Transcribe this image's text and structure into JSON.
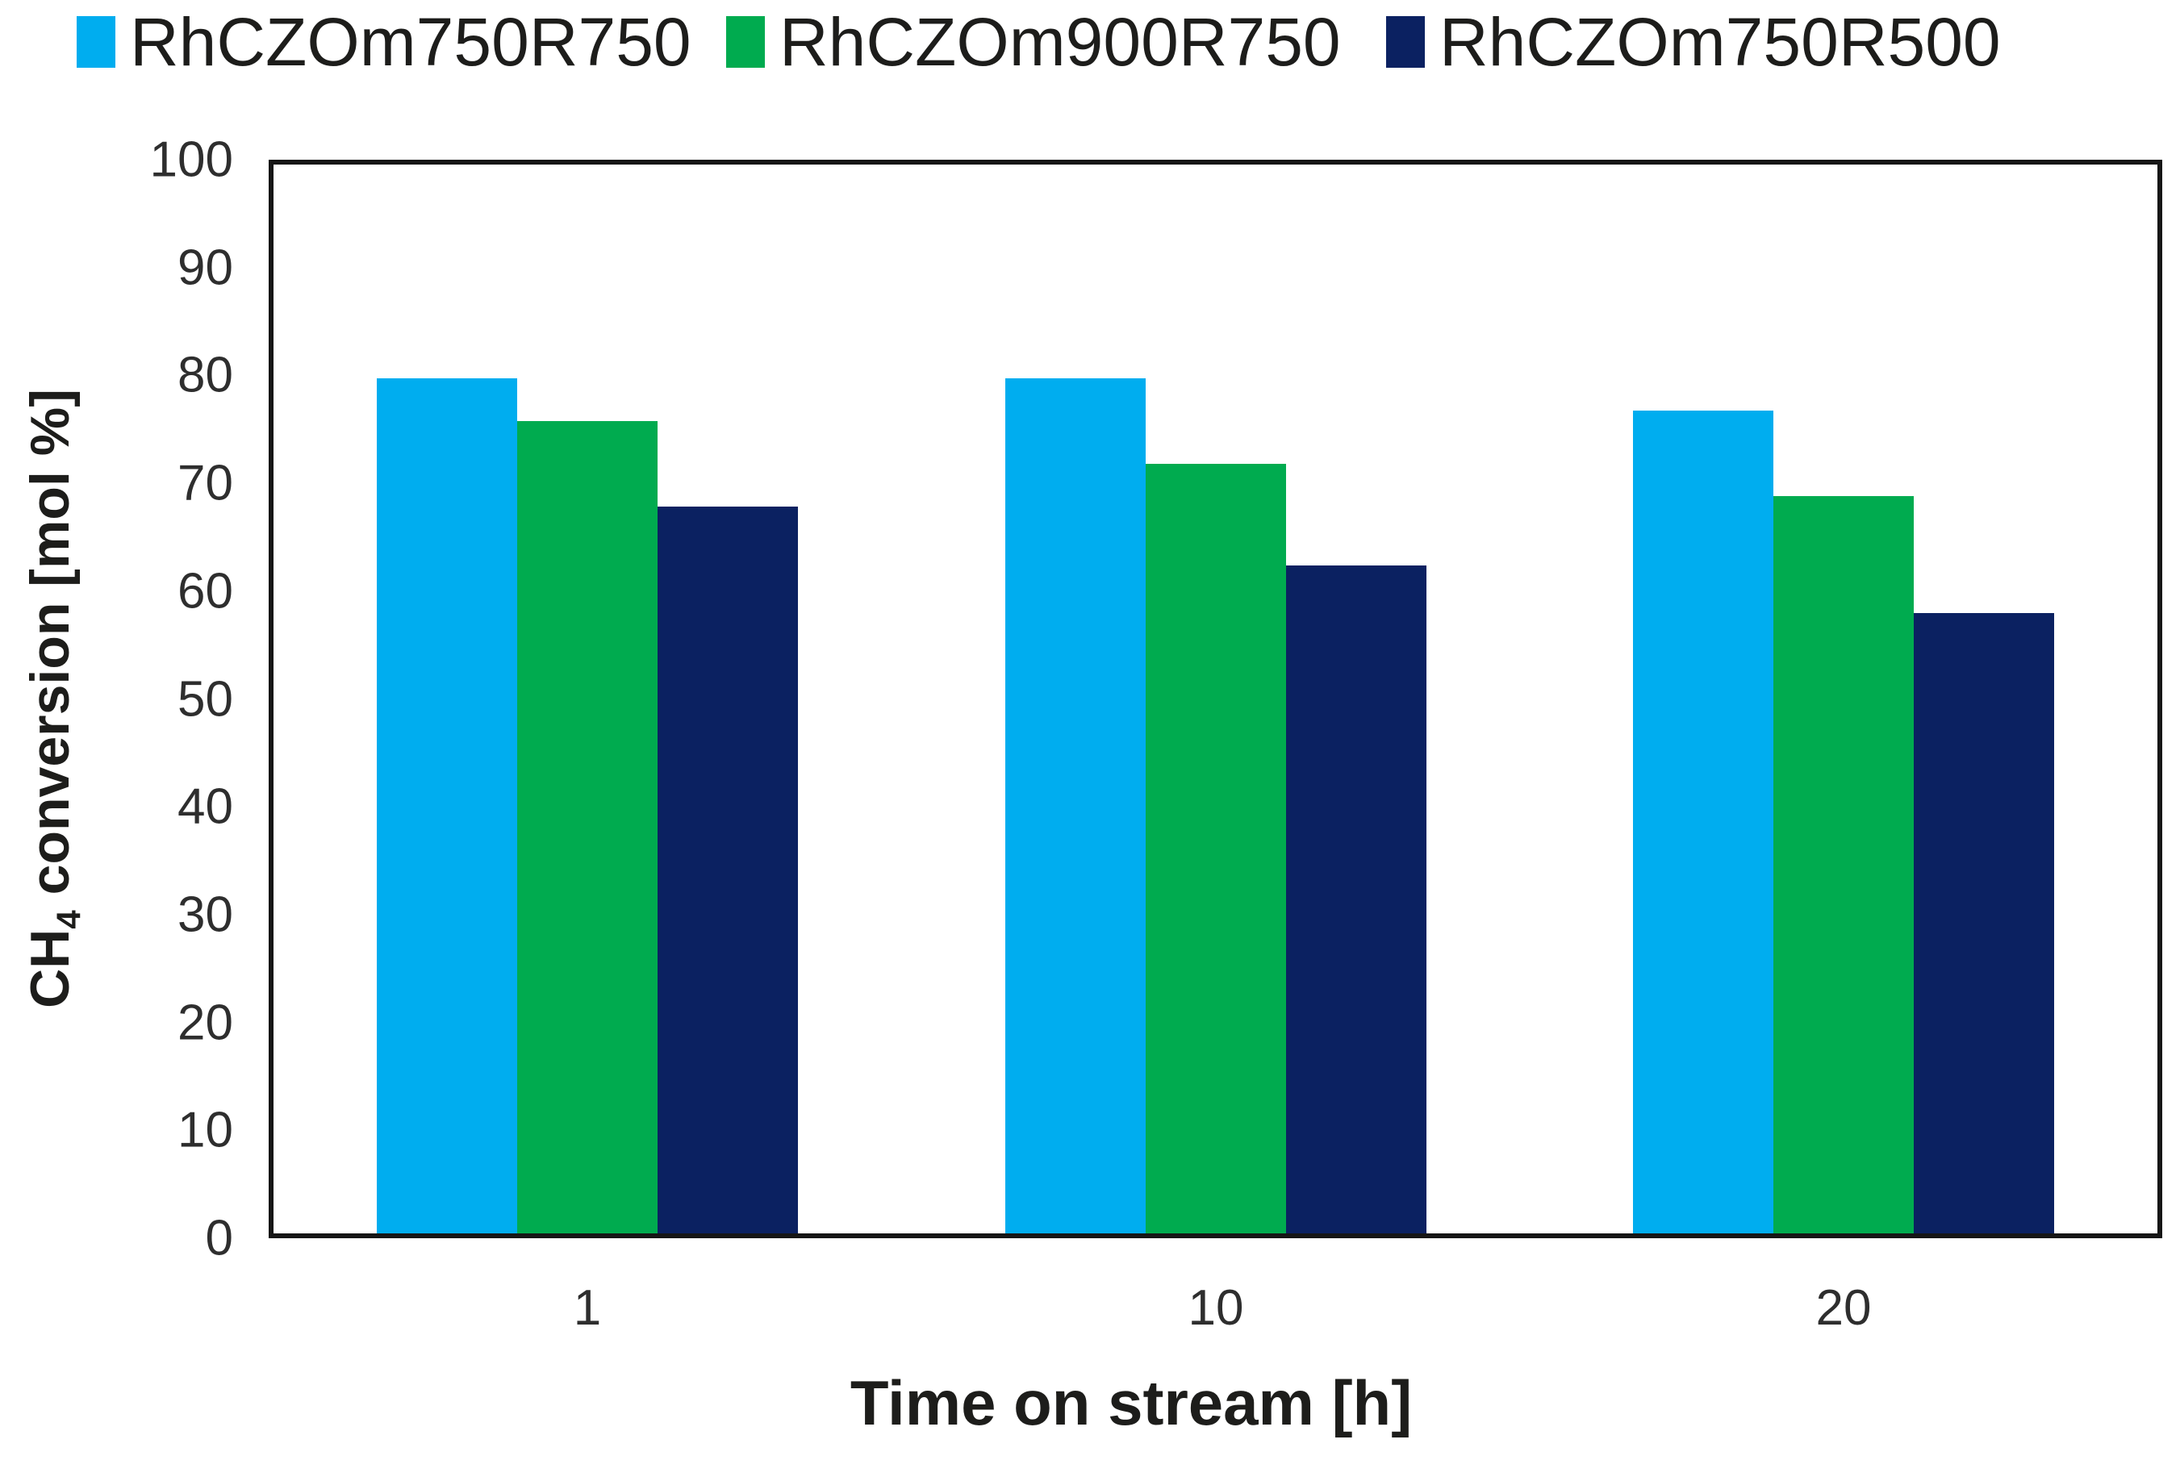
{
  "chart_data": {
    "type": "bar",
    "title": "",
    "categories": [
      "1",
      "10",
      "20"
    ],
    "series": [
      {
        "name": "RhCZOm750R750",
        "color": "#00ADEF",
        "values": [
          80,
          80,
          77
        ]
      },
      {
        "name": "RhCZOm900R750",
        "color": "#00AB4F",
        "values": [
          76,
          72,
          69
        ]
      },
      {
        "name": "RhCZOm750R500",
        "color": "#0B2161",
        "values": [
          68,
          62.5,
          58
        ]
      }
    ],
    "xlabel": "Time on stream [h]",
    "ylabel": "CH4 conversion [mol %]",
    "ylabel_parts": {
      "prefix": "CH",
      "sub": "4",
      "suffix": " conversion [mol %]"
    },
    "ylim": [
      0,
      100
    ],
    "ytick_step": 10,
    "y_tick_labels": [
      "0",
      "10",
      "20",
      "30",
      "40",
      "50",
      "60",
      "70",
      "80",
      "90",
      "100"
    ],
    "x_tick_labels": [
      "1",
      "10",
      "20"
    ],
    "legend_position": "top",
    "grid": false,
    "frame_color": "#161616",
    "text_color": "#1d1d1b"
  },
  "legend": {
    "items": [
      {
        "label": "RhCZOm750R750"
      },
      {
        "label": "RhCZOm900R750"
      },
      {
        "label": "RhCZOm750R500"
      }
    ]
  },
  "axes": {
    "x_title": "Time on stream [h]"
  }
}
